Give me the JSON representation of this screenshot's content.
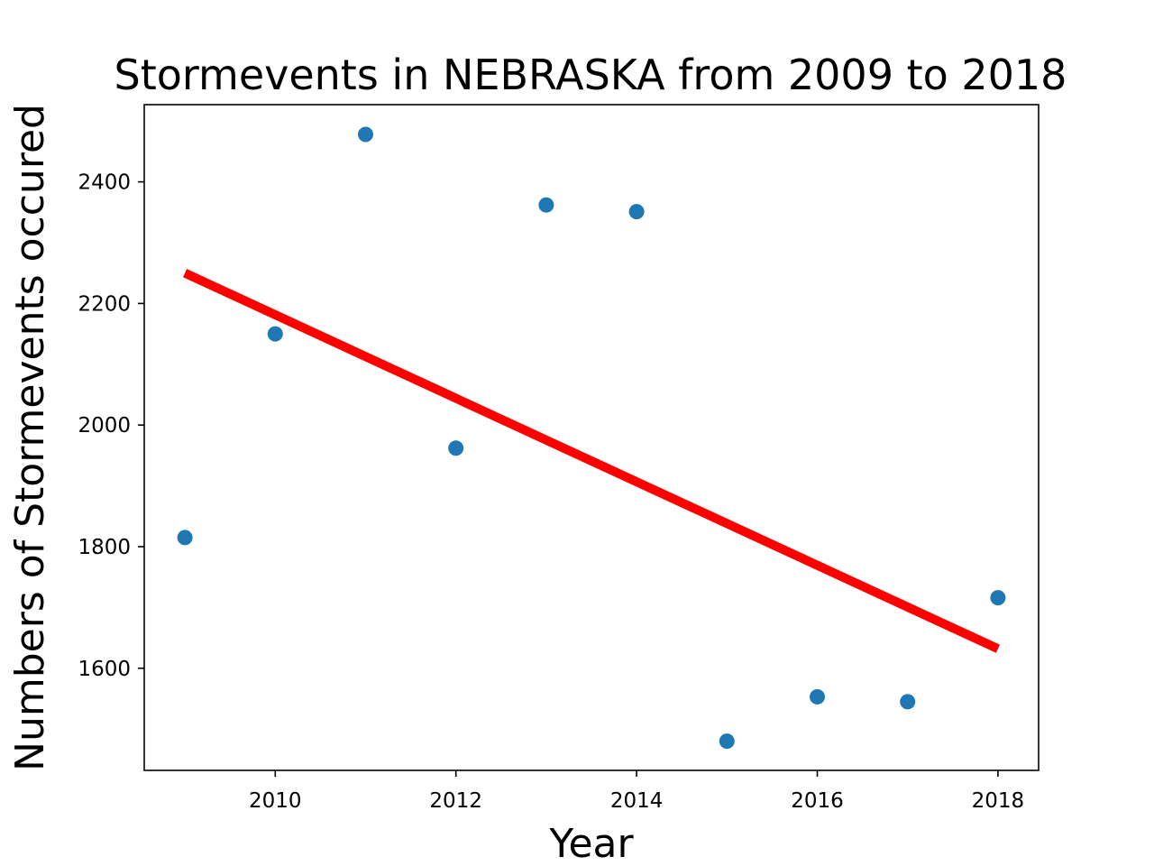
{
  "chart_data": {
    "type": "scatter",
    "title": "Stormevents in NEBRASKA from 2009 to 2018",
    "xlabel": "Year",
    "ylabel": "Numbers of Stormevents occured",
    "xlim": [
      2008.55,
      2018.45
    ],
    "ylim": [
      1432,
      2527
    ],
    "xticks": [
      2010,
      2012,
      2014,
      2016,
      2018
    ],
    "yticks": [
      1600,
      1800,
      2000,
      2200,
      2400
    ],
    "grid": false,
    "points": {
      "x": [
        2009,
        2010,
        2011,
        2012,
        2013,
        2014,
        2015,
        2016,
        2017,
        2018
      ],
      "y": [
        1815,
        2150,
        2478,
        1962,
        2362,
        2351,
        1480,
        1553,
        1545,
        1716
      ],
      "color": "#1f77b4"
    },
    "trend_line": {
      "x": [
        2009,
        2018
      ],
      "y": [
        2250,
        1632
      ],
      "color": "#ff0000"
    }
  }
}
